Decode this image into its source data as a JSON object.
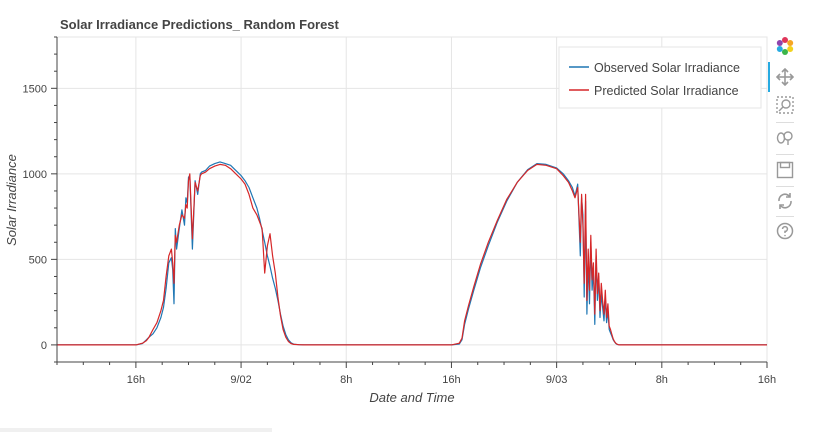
{
  "chart_data": {
    "type": "line",
    "title": "Solar Irradiance Predictions_ Random Forest",
    "xlabel": "Date and Time",
    "ylabel": "Solar Irradiance",
    "x_ticks": [
      "16h",
      "9/02",
      "8h",
      "16h",
      "9/03",
      "8h",
      "16h"
    ],
    "x_tick_hours": [
      16,
      24,
      32,
      40,
      48,
      56,
      64
    ],
    "xlim_hours": [
      10,
      64
    ],
    "x_unit": "hours since 2021-09-01 00:00",
    "y_ticks": [
      0,
      500,
      1000,
      1500
    ],
    "ylim": [
      -100,
      1800
    ],
    "grid": true,
    "legend_position": "top-right",
    "series": [
      {
        "name": "Observed Solar Irradiance",
        "color": "#1f77b4",
        "x": [
          10,
          16.0,
          16.5,
          16.8,
          17.0,
          17.3,
          17.6,
          17.9,
          18.1,
          18.3,
          18.5,
          18.7,
          18.8,
          18.9,
          19.0,
          19.1,
          19.3,
          19.5,
          19.7,
          19.8,
          19.9,
          20.0,
          20.1,
          20.3,
          20.5,
          20.7,
          20.9,
          21.0,
          21.3,
          21.6,
          22.0,
          22.4,
          22.8,
          23.2,
          23.6,
          24.0,
          24.3,
          24.6,
          24.9,
          25.2,
          25.4,
          25.6,
          25.8,
          26.0,
          26.2,
          26.4,
          26.6,
          26.8,
          27.0,
          27.2,
          27.4,
          27.6,
          27.8,
          28.0,
          28.4,
          28.8,
          29.5,
          30,
          40,
          40.6,
          40.8,
          41.0,
          41.3,
          41.7,
          42.2,
          42.8,
          43.5,
          44.2,
          45,
          45.8,
          46.5,
          47.2,
          48,
          48.5,
          48.9,
          49.2,
          49.4,
          49.6,
          49.8,
          49.9,
          50.0,
          50.1,
          50.2,
          50.3,
          50.4,
          50.5,
          50.6,
          50.7,
          50.8,
          50.9,
          51.0,
          51.1,
          51.2,
          51.3,
          51.4,
          51.5,
          51.6,
          51.7,
          51.8,
          51.9,
          52.0,
          52.1,
          52.2,
          52.3,
          52.4,
          52.5,
          52.6,
          52.7,
          52.8,
          53.0,
          53.2,
          53.5,
          54,
          64
        ],
        "y": [
          0,
          0,
          8,
          30,
          45,
          65,
          100,
          160,
          220,
          330,
          480,
          510,
          440,
          240,
          680,
          560,
          680,
          790,
          700,
          860,
          830,
          980,
          990,
          560,
          960,
          880,
          1000,
          1010,
          1020,
          1045,
          1060,
          1070,
          1060,
          1050,
          1020,
          990,
          960,
          920,
          860,
          800,
          740,
          670,
          600,
          520,
          460,
          390,
          330,
          260,
          180,
          110,
          60,
          30,
          12,
          4,
          1,
          0,
          0,
          0,
          0,
          5,
          30,
          120,
          210,
          320,
          450,
          580,
          720,
          840,
          950,
          1025,
          1060,
          1055,
          1035,
          1000,
          960,
          920,
          870,
          940,
          520,
          860,
          760,
          280,
          840,
          180,
          500,
          240,
          600,
          320,
          440,
          120,
          520,
          260,
          400,
          160,
          300,
          220,
          140,
          280,
          130,
          200,
          90,
          70,
          50,
          30,
          18,
          8,
          3,
          1,
          0,
          0,
          0,
          0,
          0,
          0
        ]
      },
      {
        "name": "Predicted Solar Irradiance",
        "color": "#d62728",
        "x": [
          10,
          16.0,
          16.5,
          16.8,
          17.0,
          17.3,
          17.6,
          17.9,
          18.1,
          18.3,
          18.5,
          18.7,
          18.8,
          18.9,
          19.0,
          19.1,
          19.3,
          19.5,
          19.7,
          19.8,
          19.9,
          20.0,
          20.1,
          20.3,
          20.5,
          20.7,
          20.9,
          21.0,
          21.3,
          21.6,
          22.0,
          22.4,
          22.8,
          23.2,
          23.6,
          24.0,
          24.3,
          24.6,
          24.9,
          25.2,
          25.4,
          25.6,
          25.8,
          26.0,
          26.2,
          26.4,
          26.6,
          26.8,
          27.0,
          27.2,
          27.4,
          27.6,
          27.8,
          28.0,
          28.4,
          28.8,
          29.5,
          30,
          40,
          40.6,
          40.8,
          41.0,
          41.3,
          41.7,
          42.2,
          42.8,
          43.5,
          44.2,
          45,
          45.8,
          46.5,
          47.2,
          48,
          48.5,
          48.9,
          49.2,
          49.4,
          49.6,
          49.8,
          49.9,
          50.0,
          50.1,
          50.2,
          50.3,
          50.4,
          50.5,
          50.6,
          50.7,
          50.8,
          50.9,
          51.0,
          51.1,
          51.2,
          51.3,
          51.4,
          51.5,
          51.6,
          51.7,
          51.8,
          51.9,
          52.0,
          52.1,
          52.2,
          52.3,
          52.4,
          52.5,
          52.6,
          52.7,
          52.8,
          53.0,
          53.2,
          53.5,
          54,
          64
        ],
        "y": [
          0,
          0,
          10,
          25,
          45,
          90,
          130,
          200,
          260,
          400,
          520,
          560,
          480,
          360,
          640,
          600,
          700,
          760,
          740,
          820,
          800,
          960,
          1000,
          620,
          950,
          900,
          990,
          1000,
          1010,
          1030,
          1045,
          1055,
          1050,
          1030,
          1000,
          970,
          940,
          880,
          800,
          760,
          720,
          680,
          420,
          580,
          650,
          520,
          420,
          280,
          170,
          90,
          45,
          20,
          8,
          3,
          1,
          0,
          0,
          0,
          0,
          10,
          40,
          140,
          230,
          340,
          470,
          600,
          730,
          850,
          950,
          1020,
          1055,
          1050,
          1030,
          990,
          950,
          900,
          860,
          920,
          600,
          880,
          700,
          360,
          880,
          260,
          560,
          320,
          640,
          380,
          480,
          180,
          560,
          300,
          420,
          200,
          360,
          260,
          180,
          320,
          160,
          240,
          110,
          90,
          60,
          35,
          20,
          10,
          4,
          1,
          0,
          0,
          0,
          0,
          0,
          0
        ]
      }
    ]
  },
  "toolbar": {
    "tools": [
      "bokeh-logo-icon",
      "pan-icon",
      "box-zoom-icon",
      "wheel-zoom-icon",
      "save-icon",
      "reset-icon",
      "help-icon"
    ]
  }
}
